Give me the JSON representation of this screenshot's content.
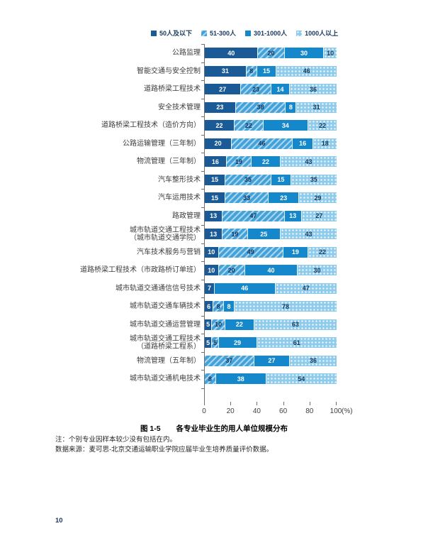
{
  "page": {
    "number": "10"
  },
  "colors": {
    "series1_dark": "#1A5A96",
    "series2_hatch_base": "#43A2D9",
    "series3_solid": "#1588CB",
    "series4_dot_base": "#8FCBEB",
    "value_text_light": "#FFFFFF",
    "value_text_dark": "#16375E",
    "axis": "#6e6e6e"
  },
  "legend": [
    {
      "label": "50人及以下",
      "style": "dark"
    },
    {
      "label": "51-300人",
      "style": "hatch"
    },
    {
      "label": "301-1000人",
      "style": "solid"
    },
    {
      "label": "1000人以上",
      "style": "dot"
    }
  ],
  "chart_data": {
    "type": "bar",
    "orientation": "horizontal",
    "stacked": true,
    "unit": "%",
    "xlim": [
      0,
      100
    ],
    "x_ticks": [
      0,
      20,
      40,
      60,
      80,
      100
    ],
    "x_axis_suffix": "(%)",
    "legend_position": "top",
    "grid": false,
    "title": "各专业毕业生的用人单位规模分布",
    "series_names": [
      "50人及以下",
      "51-300人",
      "301-1000人",
      "1000人以上"
    ],
    "rows": [
      {
        "category": "公路监理",
        "label_lines": [
          "公路监理"
        ],
        "values": [
          40,
          20,
          30,
          10
        ]
      },
      {
        "category": "智能交通与安全控制",
        "label_lines": [
          "智能交通与安全控制"
        ],
        "values": [
          31,
          8,
          15,
          46
        ]
      },
      {
        "category": "道路桥梁工程技术",
        "label_lines": [
          "道路桥梁工程技术"
        ],
        "values": [
          27,
          23,
          14,
          36
        ]
      },
      {
        "category": "安全技术管理",
        "label_lines": [
          "安全技术管理"
        ],
        "values": [
          23,
          38,
          8,
          31
        ]
      },
      {
        "category": "道路桥梁工程技术（造价方向）",
        "label_lines": [
          "道路桥梁工程技术（造价方向）"
        ],
        "values": [
          22,
          22,
          34,
          22
        ]
      },
      {
        "category": "公路运输管理（三年制）",
        "label_lines": [
          "公路运输管理（三年制）"
        ],
        "values": [
          20,
          46,
          16,
          18
        ]
      },
      {
        "category": "物流管理（三年制）",
        "label_lines": [
          "物流管理（三年制）"
        ],
        "values": [
          16,
          19,
          22,
          43
        ]
      },
      {
        "category": "汽车整形技术",
        "label_lines": [
          "汽车整形技术"
        ],
        "values": [
          15,
          35,
          15,
          35
        ]
      },
      {
        "category": "汽车运用技术",
        "label_lines": [
          "汽车运用技术"
        ],
        "values": [
          15,
          33,
          23,
          29
        ]
      },
      {
        "category": "路政管理",
        "label_lines": [
          "路政管理"
        ],
        "values": [
          13,
          47,
          13,
          27
        ]
      },
      {
        "category": "城市轨道交通工程技术（城市轨道交通学院）",
        "label_lines": [
          "城市轨道交通工程技术",
          "（城市轨道交通学院）"
        ],
        "values": [
          13,
          19,
          25,
          43
        ]
      },
      {
        "category": "汽车技术服务与营销",
        "label_lines": [
          "汽车技术服务与营销"
        ],
        "values": [
          10,
          49,
          19,
          22
        ]
      },
      {
        "category": "道路桥梁工程技术（市政路桥订单班）",
        "label_lines": [
          "道路桥梁工程技术（市政路桥订单班）"
        ],
        "values": [
          10,
          20,
          40,
          30
        ]
      },
      {
        "category": "城市轨道交通通信信号技术",
        "label_lines": [
          "城市轨道交通通信信号技术"
        ],
        "values": [
          7,
          0,
          46,
          47
        ]
      },
      {
        "category": "城市轨道交通车辆技术",
        "label_lines": [
          "城市轨道交通车辆技术"
        ],
        "values": [
          6,
          8,
          8,
          78
        ]
      },
      {
        "category": "城市轨道交通运营管理",
        "label_lines": [
          "城市轨道交通运营管理"
        ],
        "values": [
          5,
          10,
          22,
          63
        ]
      },
      {
        "category": "城市轨道交通工程技术（道路桥梁工程系）",
        "label_lines": [
          "城市轨道交通工程技术",
          "（道路桥梁工程系）"
        ],
        "values": [
          5,
          5,
          29,
          61
        ]
      },
      {
        "category": "物流管理（五年制）",
        "label_lines": [
          "物流管理（五年制）"
        ],
        "values": [
          0,
          37,
          27,
          36
        ]
      },
      {
        "category": "城市轨道交通机电技术",
        "label_lines": [
          "城市轨道交通机电技术"
        ],
        "values": [
          0,
          8,
          38,
          54
        ]
      }
    ]
  },
  "caption": {
    "figure_label": "图 1-5",
    "title": "各专业毕业生的用人单位规模分布"
  },
  "notes": {
    "note": "注：个别专业因样本较少没有包括在内。",
    "source": "数据来源：麦可思-北京交通运输职业学院应届毕业生培养质量评价数据。"
  }
}
